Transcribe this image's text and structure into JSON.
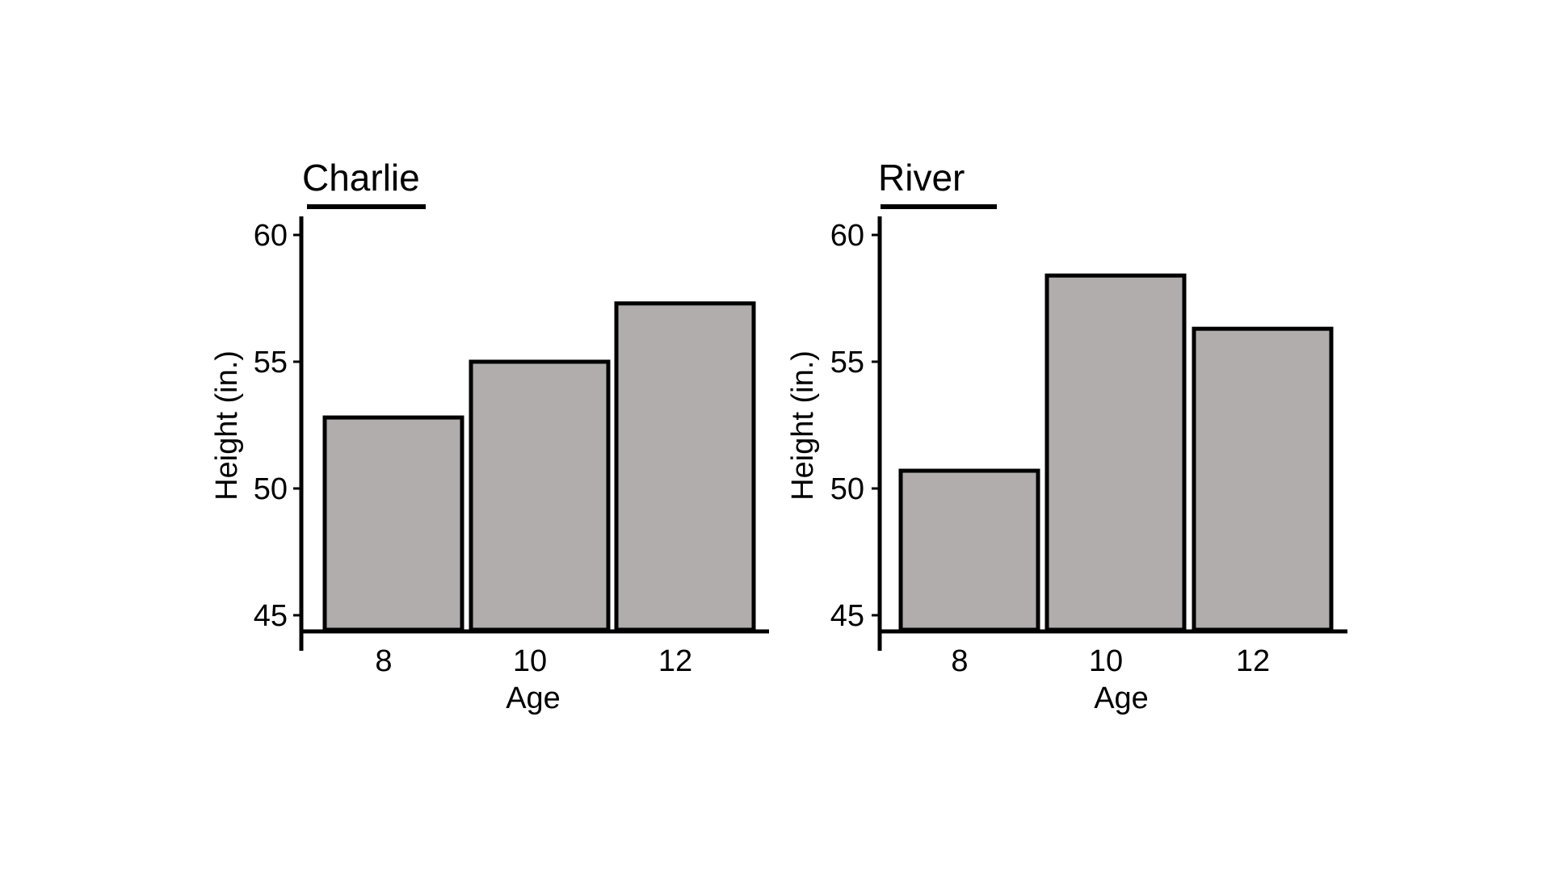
{
  "chart_data": [
    {
      "type": "bar",
      "title": "Charlie",
      "xlabel": "Age",
      "ylabel": "Height (in.)",
      "categories": [
        "8",
        "10",
        "12"
      ],
      "values": [
        52.8,
        55.0,
        57.3
      ],
      "ylim": [
        44.3,
        61.0
      ],
      "yticks": [
        45,
        50,
        55,
        60
      ],
      "ytick_labels": [
        "45",
        "50",
        "55",
        "60"
      ],
      "bar_color": "#b0adac",
      "grid": false,
      "legend": "none"
    },
    {
      "type": "bar",
      "title": "River",
      "xlabel": "Age",
      "ylabel": "Height (in.)",
      "categories": [
        "8",
        "10",
        "12"
      ],
      "values": [
        50.7,
        58.4,
        56.3
      ],
      "ylim": [
        44.3,
        61.0
      ],
      "yticks": [
        45,
        50,
        55,
        60
      ],
      "ytick_labels": [
        "45",
        "50",
        "55",
        "60"
      ],
      "bar_color": "#b0adac",
      "grid": false,
      "legend": "none"
    }
  ]
}
